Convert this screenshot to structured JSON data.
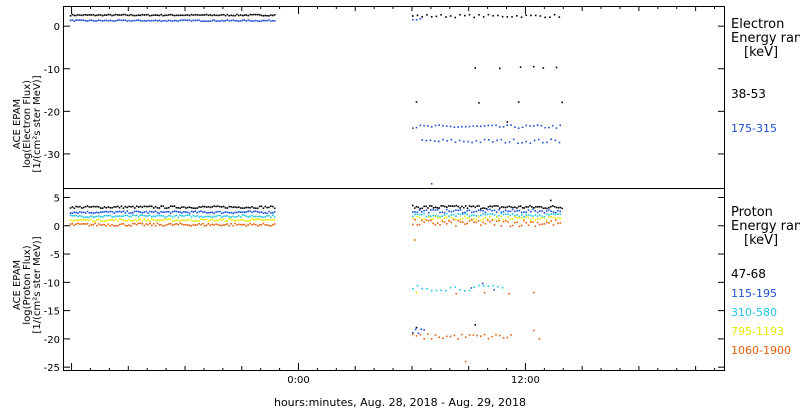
{
  "x_axis_label": "hours:minutes, Aug. 28, 2018 - Aug. 29, 2018",
  "x_ticks": [
    {
      "label": "0:00",
      "hour": 0
    },
    {
      "label": "12:00",
      "hour": 12
    }
  ],
  "x_range_hours": [
    -12.4,
    22.5
  ],
  "chart_data": [
    {
      "type": "scatter",
      "panel": "electron",
      "ylabel_lines": [
        "ACE EPAM",
        "log(Electron Flux)",
        "[1/(cm²s ster MeV)]"
      ],
      "ylim": [
        -38,
        4.5
      ],
      "y_ticks": [
        0,
        -10,
        -20,
        -30
      ],
      "y_tick_labels": [
        "0",
        "-10",
        "-20",
        "-30"
      ],
      "legend_title": [
        "Electron",
        "Energy range",
        "[keV]"
      ],
      "series": [
        {
          "name": "38-53",
          "color": "#000000",
          "segments": [
            {
              "x0": -12.1,
              "x1": -1.3,
              "y": 2.6,
              "noise": 0.15,
              "step": 0.1
            },
            {
              "x0": 6.0,
              "x1": 13.9,
              "y": 2.4,
              "noise": 0.35,
              "step": 0.25
            }
          ],
          "scatter": [
            {
              "x": 9.3,
              "y": -9.8
            },
            {
              "x": 10.6,
              "y": -9.9
            },
            {
              "x": 11.7,
              "y": -9.6
            },
            {
              "x": 12.4,
              "y": -9.5
            },
            {
              "x": 12.9,
              "y": -9.8
            },
            {
              "x": 13.6,
              "y": -9.7
            },
            {
              "x": 6.2,
              "y": -17.8
            },
            {
              "x": 9.5,
              "y": -18.0
            },
            {
              "x": 11.6,
              "y": -17.8
            },
            {
              "x": 13.9,
              "y": -17.9
            },
            {
              "x": 11.0,
              "y": -22.5
            }
          ]
        },
        {
          "name": "175-315",
          "color": "#1f4fd6",
          "segments": [
            {
              "x0": -12.1,
              "x1": -1.3,
              "y": 1.3,
              "noise": 0.15,
              "step": 0.1
            },
            {
              "x0": 6.0,
              "x1": 6.4,
              "y": 1.8,
              "noise": 0.3,
              "step": 0.2
            },
            {
              "x0": 6.0,
              "x1": 13.9,
              "y": -23.6,
              "noise": 0.4,
              "step": 0.2
            },
            {
              "x0": 6.5,
              "x1": 13.9,
              "y": -27.0,
              "noise": 0.5,
              "step": 0.22
            }
          ],
          "scatter": [
            {
              "x": 7.0,
              "y": -37.0
            }
          ]
        }
      ]
    },
    {
      "type": "scatter",
      "panel": "proton",
      "ylabel_lines": [
        "ACE EPAM",
        "log(Proton Flux)",
        "[1/(cm²s ster MeV)]"
      ],
      "ylim": [
        -25.5,
        6.5
      ],
      "y_ticks": [
        5,
        0,
        -5,
        -10,
        -15,
        -20,
        -25
      ],
      "y_tick_labels": [
        "5",
        "0",
        "-5",
        "-10",
        "-15",
        "-20",
        "-25"
      ],
      "legend_title": [
        "Proton",
        "Energy range",
        "[keV]"
      ],
      "series": [
        {
          "name": "47-68",
          "color": "#000000",
          "segments": [
            {
              "x0": -12.1,
              "x1": -1.3,
              "y": 3.3,
              "noise": 0.2,
              "step": 0.1
            },
            {
              "x0": 6.0,
              "x1": 13.9,
              "y": 3.3,
              "noise": 0.3,
              "step": 0.1
            }
          ],
          "scatter": [
            {
              "x": 13.3,
              "y": 4.5
            },
            {
              "x": 6.2,
              "y": -18.0
            },
            {
              "x": 9.3,
              "y": -17.5
            }
          ]
        },
        {
          "name": "115-195",
          "color": "#1f4fd6",
          "segments": [
            {
              "x0": -12.1,
              "x1": -1.3,
              "y": 2.4,
              "noise": 0.2,
              "step": 0.1
            },
            {
              "x0": 6.0,
              "x1": 13.9,
              "y": 2.6,
              "noise": 0.3,
              "step": 0.12
            },
            {
              "x0": 6.0,
              "x1": 6.6,
              "y": -18.6,
              "noise": 0.4,
              "step": 0.15
            }
          ],
          "scatter": [
            {
              "x": 9.1,
              "y": -11.0
            },
            {
              "x": 9.7,
              "y": -10.2
            },
            {
              "x": 10.3,
              "y": -11.3
            }
          ]
        },
        {
          "name": "310-580",
          "color": "#20c8e8",
          "segments": [
            {
              "x0": -12.1,
              "x1": -1.3,
              "y": 1.7,
              "noise": 0.2,
              "step": 0.1
            },
            {
              "x0": 6.0,
              "x1": 13.9,
              "y": 1.9,
              "noise": 0.3,
              "step": 0.12
            },
            {
              "x0": 6.0,
              "x1": 10.8,
              "y": -11.0,
              "noise": 0.5,
              "step": 0.25
            }
          ],
          "scatter": []
        },
        {
          "name": "795-1193",
          "color": "#e8e800",
          "segments": [
            {
              "x0": -12.1,
              "x1": -1.3,
              "y": 1.0,
              "noise": 0.2,
              "step": 0.1
            },
            {
              "x0": 6.0,
              "x1": 13.9,
              "y": 1.3,
              "noise": 0.35,
              "step": 0.12
            }
          ],
          "scatter": [
            {
              "x": 6.2,
              "y": -11.8
            }
          ]
        },
        {
          "name": "1060-1900",
          "color": "#e8600c",
          "segments": [
            {
              "x0": -12.1,
              "x1": -1.3,
              "y": 0.2,
              "noise": 0.25,
              "step": 0.1
            },
            {
              "x0": 6.0,
              "x1": 13.9,
              "y": 0.5,
              "noise": 0.6,
              "step": 0.12
            },
            {
              "x0": 6.0,
              "x1": 11.2,
              "y": -19.6,
              "noise": 0.5,
              "step": 0.2
            }
          ],
          "scatter": [
            {
              "x": 6.1,
              "y": -2.5
            },
            {
              "x": 8.3,
              "y": -12.0
            },
            {
              "x": 9.8,
              "y": -11.8
            },
            {
              "x": 11.1,
              "y": -12.0
            },
            {
              "x": 12.4,
              "y": -11.8
            },
            {
              "x": 12.4,
              "y": -18.5
            },
            {
              "x": 12.7,
              "y": -20.0
            },
            {
              "x": 8.8,
              "y": -24.0
            }
          ]
        }
      ]
    }
  ]
}
